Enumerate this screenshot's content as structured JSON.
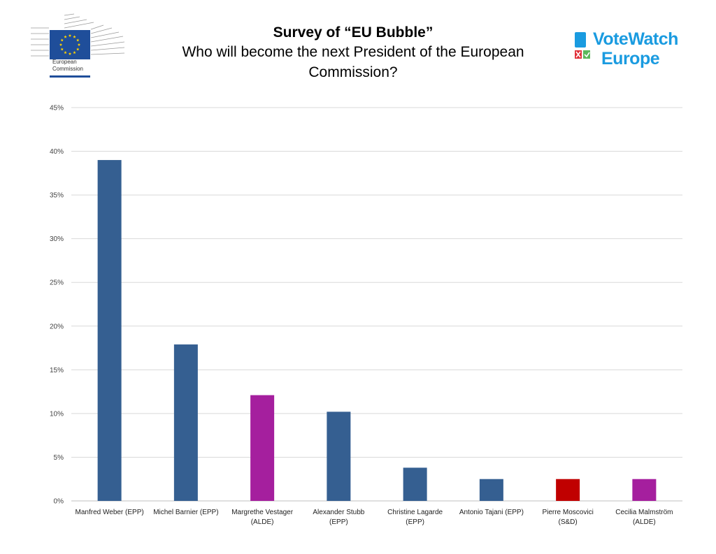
{
  "header": {
    "ec_logo_line1": "European",
    "ec_logo_line2": "Commission",
    "title": "Survey of “EU Bubble”",
    "subtitle": "Who will become the next President of the European Commission?",
    "votewatch_line1": "VoteWatch",
    "votewatch_line2": "Europe"
  },
  "colors": {
    "EPP": "#355f91",
    "ALDE": "#a51f9e",
    "S&D": "#c00000",
    "ec_blue": "#1f4e9a",
    "ec_star": "#ffd200",
    "votewatch_blue": "#1a9be0",
    "gridline": "#d9d9d9"
  },
  "chart_data": {
    "type": "bar",
    "title": "Survey of “EU Bubble”",
    "subtitle": "Who will become the next President of the European Commission?",
    "categories": [
      [
        "Manfred Weber (EPP)"
      ],
      [
        "Michel Barnier (EPP)"
      ],
      [
        "Margrethe Vestager",
        "(ALDE)"
      ],
      [
        "Alexander Stubb",
        "(EPP)"
      ],
      [
        "Christine Lagarde",
        "(EPP)"
      ],
      [
        "Antonio Tajani (EPP)"
      ],
      [
        "Pierre Moscovici",
        "(S&D)"
      ],
      [
        "Cecilia Malmström",
        "(ALDE)"
      ]
    ],
    "groups": [
      "EPP",
      "EPP",
      "ALDE",
      "EPP",
      "EPP",
      "EPP",
      "S&D",
      "ALDE"
    ],
    "values": [
      39.0,
      17.9,
      12.1,
      10.2,
      3.8,
      2.5,
      2.5,
      2.5
    ],
    "yticks": [
      "0%",
      "5%",
      "10%",
      "15%",
      "20%",
      "25%",
      "30%",
      "35%",
      "40%",
      "45%"
    ],
    "ylim": [
      0,
      45
    ],
    "grid": true,
    "legend": "none"
  }
}
